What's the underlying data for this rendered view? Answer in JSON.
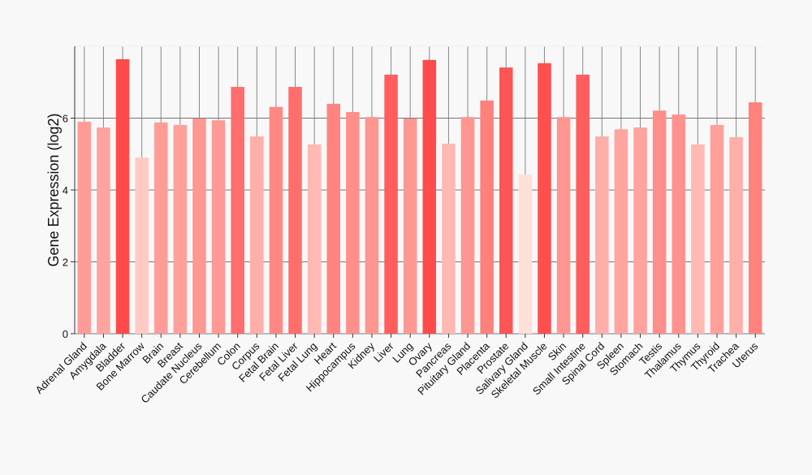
{
  "chart_data": {
    "type": "bar",
    "title": "",
    "xlabel": "",
    "ylabel": "Gene Expression (log2)",
    "ylim": [
      0,
      8
    ],
    "yticks": [
      0,
      2,
      4,
      6
    ],
    "grid": true,
    "categories": [
      "Adrenal Gland",
      "Amygdala",
      "Bladder",
      "Bone Marrow",
      "Brain",
      "Breast",
      "Caudate Nucleus",
      "Cerebellum",
      "Colon",
      "Corpus",
      "Fetal Brain",
      "Fetal Liver",
      "Fetal Lung",
      "Heart",
      "Hippocampus",
      "Kidney",
      "Liver",
      "Lung",
      "Ovary",
      "Pancreas",
      "Pituitary Gland",
      "Placenta",
      "Prostate",
      "Salivary Gland",
      "Skeletal Muscle",
      "Skin",
      "Small Intestine",
      "Spinal Cord",
      "Spleen",
      "Stomach",
      "Testis",
      "Thalamus",
      "Thymus",
      "Thyroid",
      "Trachea",
      "Uterus"
    ],
    "values": [
      5.9,
      5.74,
      7.64,
      4.9,
      5.88,
      5.81,
      5.99,
      5.94,
      6.87,
      5.49,
      6.31,
      6.87,
      5.27,
      6.4,
      6.17,
      6.03,
      7.21,
      5.99,
      7.62,
      5.29,
      6.03,
      6.49,
      7.41,
      4.43,
      7.53,
      6.03,
      7.21,
      5.49,
      5.69,
      5.74,
      6.21,
      6.1,
      5.27,
      5.81,
      5.47,
      6.44
    ],
    "color_low": "#ffe0d8",
    "color_high": "#ff4a4a"
  }
}
